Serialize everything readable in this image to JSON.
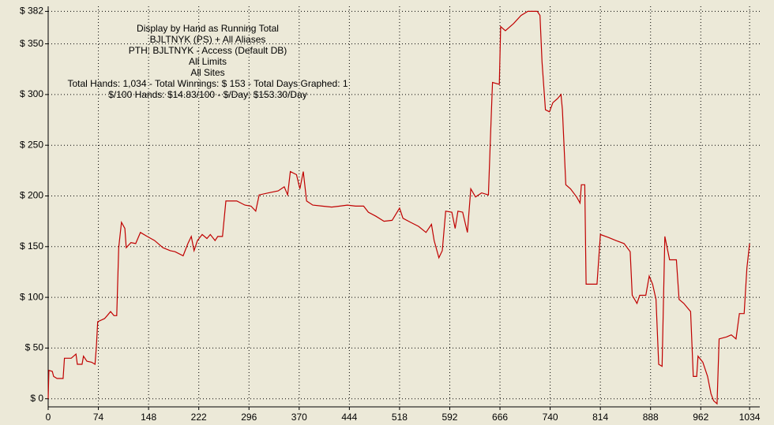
{
  "chart_data": {
    "type": "line",
    "annotations": [
      "Display by Hand as Running Total",
      "BJLTNYK (PS) + All Aliases",
      "PTH: BJLTNYK - Access (Default DB)",
      "All Limits",
      "All Sites",
      "Total Hands: 1,034 - Total Winnings: $ 153 - Total Days Graphed: 1",
      "$/100 Hands: $14.83/100 - $/Day: $153.30/Day"
    ],
    "xlim": [
      0,
      1049
    ],
    "xticks": [
      0,
      74,
      148,
      222,
      296,
      370,
      444,
      518,
      592,
      666,
      740,
      814,
      888,
      962,
      1034
    ],
    "ylim": [
      -8,
      387
    ],
    "yticks": [
      {
        "value": 0,
        "label": "$ 0"
      },
      {
        "value": 50,
        "label": "$ 50"
      },
      {
        "value": 100,
        "label": "$ 100"
      },
      {
        "value": 150,
        "label": "$ 150"
      },
      {
        "value": 200,
        "label": "$ 200"
      },
      {
        "value": 250,
        "label": "$ 250"
      },
      {
        "value": 300,
        "label": "$ 300"
      },
      {
        "value": 350,
        "label": "$ 350"
      },
      {
        "value": 382,
        "label": "$ 382"
      }
    ],
    "grid": true,
    "color": "#c00000",
    "x": [
      0,
      1,
      6,
      8,
      13,
      22,
      24,
      34,
      41,
      43,
      50,
      52,
      57,
      64,
      69,
      71,
      73,
      83,
      87,
      92,
      97,
      101,
      104,
      108,
      113,
      115,
      122,
      129,
      136,
      146,
      157,
      169,
      180,
      187,
      199,
      206,
      211,
      215,
      220,
      227,
      234,
      239,
      246,
      250,
      257,
      262,
      278,
      290,
      299,
      306,
      311,
      325,
      339,
      348,
      353,
      357,
      366,
      371,
      376,
      381,
      390,
      404,
      418,
      430,
      441,
      453,
      465,
      472,
      483,
      495,
      507,
      518,
      523,
      534,
      546,
      557,
      565,
      569,
      576,
      581,
      586,
      595,
      600,
      604,
      611,
      618,
      623,
      630,
      639,
      649,
      653,
      655,
      665,
      667,
      674,
      686,
      697,
      707,
      721,
      725,
      728,
      733,
      739,
      744,
      751,
      756,
      758,
      763,
      770,
      779,
      784,
      786,
      791,
      793,
      809,
      814,
      826,
      837,
      849,
      858,
      861,
      868,
      872,
      881,
      886,
      891,
      896,
      900,
      905,
      909,
      916,
      926,
      930,
      937,
      942,
      947,
      951,
      956,
      958,
      965,
      972,
      977,
      981,
      986,
      989,
      1000,
      1007,
      1014,
      1019,
      1026,
      1030,
      1034
    ],
    "values": [
      0,
      28,
      27,
      22,
      20,
      20,
      40,
      40,
      44,
      34,
      34,
      42,
      37,
      36,
      34,
      51,
      76,
      79,
      82,
      86,
      82,
      82,
      149,
      174,
      168,
      149,
      154,
      153,
      164,
      160,
      156,
      149,
      146,
      145,
      141,
      153,
      160,
      146,
      156,
      162,
      158,
      162,
      156,
      160,
      160,
      195,
      195,
      191,
      190,
      185,
      201,
      203,
      205,
      209,
      201,
      224,
      221,
      207,
      224,
      195,
      191,
      190,
      189,
      190,
      191,
      190,
      190,
      184,
      180,
      175,
      176,
      188,
      178,
      174,
      170,
      164,
      172,
      156,
      139,
      146,
      185,
      184,
      168,
      185,
      184,
      164,
      207,
      199,
      203,
      201,
      277,
      312,
      310,
      367,
      363,
      370,
      378,
      382,
      382,
      378,
      332,
      285,
      283,
      292,
      296,
      300,
      285,
      211,
      207,
      199,
      193,
      211,
      211,
      113,
      113,
      162,
      159,
      156,
      153,
      145,
      102,
      94,
      102,
      102,
      121,
      113,
      98,
      34,
      32,
      160,
      137,
      137,
      98,
      94,
      90,
      86,
      22,
      22,
      42,
      36,
      22,
      5,
      -2,
      -5,
      59,
      61,
      63,
      59,
      84,
      84,
      129,
      153
    ]
  }
}
